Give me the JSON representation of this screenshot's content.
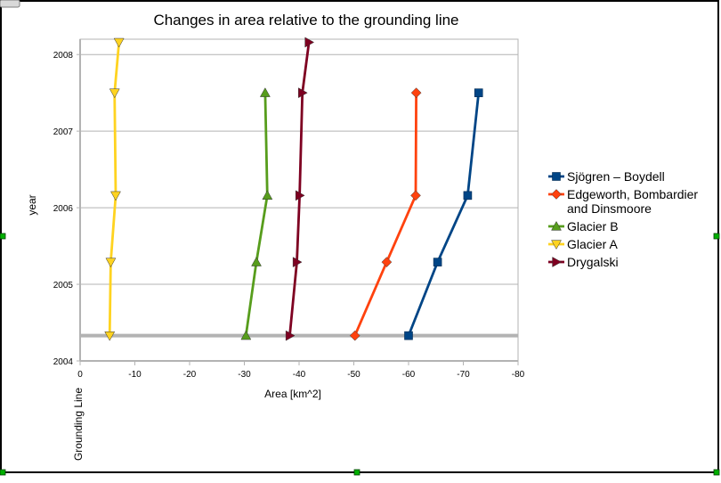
{
  "chart_data": {
    "type": "line",
    "title": "Changes in area relative to the grounding line",
    "xlabel": "Area [km^2]",
    "ylabel": "year",
    "baseline_label": "Grounding  Line",
    "xlim": [
      0,
      -80
    ],
    "ylim": [
      2004,
      2008.2
    ],
    "x_ticks": [
      0,
      -10,
      -20,
      -30,
      -40,
      -50,
      -60,
      -70,
      -80
    ],
    "y_ticks": [
      2004,
      2005,
      2006,
      2007,
      2008
    ],
    "x_tick_labels": [
      "0",
      "-10",
      "-20",
      "-30",
      "-40",
      "-50",
      "-60",
      "-70",
      "-80"
    ],
    "y_tick_labels": [
      "2004",
      "2005",
      "2006",
      "2007",
      "2008"
    ],
    "grid": "horizontal",
    "legend_position": "right",
    "baseline_year": 2004.33,
    "series": [
      {
        "name": "Sjögren – Boydell",
        "label_lines": [
          "Sjögren – Boydell"
        ],
        "marker": "square",
        "color": "#004586",
        "points": [
          [
            -60,
            2004.33
          ],
          [
            -65.3,
            2005.29
          ],
          [
            -70.8,
            2006.16
          ],
          [
            -72.8,
            2007.5
          ]
        ]
      },
      {
        "name": "Edgeworth, Bombardier and Dinsmoore",
        "label_lines": [
          "Edgeworth, Bombardier",
          "and Dinsmoore"
        ],
        "marker": "diamond",
        "color": "#ff420e",
        "points": [
          [
            -50.2,
            2004.33
          ],
          [
            -56,
            2005.29
          ],
          [
            -61.3,
            2006.16
          ],
          [
            -61.4,
            2007.5
          ]
        ]
      },
      {
        "name": "Glacier B",
        "label_lines": [
          "Glacier B"
        ],
        "marker": "triangle-up",
        "color": "#579d1c",
        "points": [
          [
            -30.3,
            2004.33
          ],
          [
            -32.2,
            2005.29
          ],
          [
            -34.2,
            2006.16
          ],
          [
            -33.8,
            2007.5
          ]
        ]
      },
      {
        "name": "Glacier A",
        "label_lines": [
          "Glacier A"
        ],
        "marker": "triangle-down",
        "color": "#ffd320",
        "points": [
          [
            -5.4,
            2004.33
          ],
          [
            -5.6,
            2005.29
          ],
          [
            -6.5,
            2006.16
          ],
          [
            -6.3,
            2007.5
          ],
          [
            -7.1,
            2008.16
          ]
        ]
      },
      {
        "name": "Drygalski",
        "label_lines": [
          "Drygalski"
        ],
        "marker": "triangle-right",
        "color": "#7e0021",
        "points": [
          [
            -38.3,
            2004.33
          ],
          [
            -39.6,
            2005.29
          ],
          [
            -40.1,
            2006.16
          ],
          [
            -40.6,
            2007.5
          ],
          [
            -41.8,
            2008.16
          ]
        ]
      }
    ]
  }
}
